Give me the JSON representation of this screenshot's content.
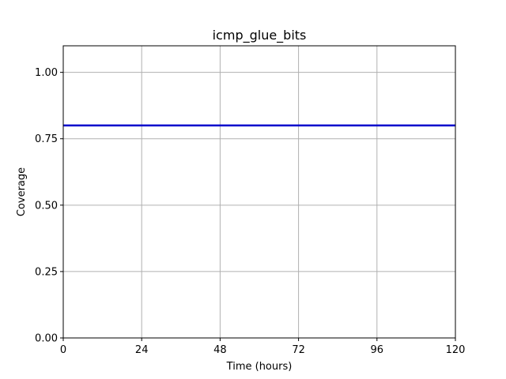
{
  "chart_data": {
    "type": "line",
    "title": "icmp_glue_bits",
    "xlabel": "Time (hours)",
    "ylabel": "Coverage",
    "xlim": [
      0,
      120
    ],
    "ylim": [
      0,
      1.1
    ],
    "xticks": [
      0,
      24,
      48,
      72,
      96,
      120
    ],
    "xtick_labels": [
      "0",
      "24",
      "48",
      "72",
      "96",
      "120"
    ],
    "yticks": [
      0,
      0.25,
      0.5,
      0.75,
      1.0
    ],
    "ytick_labels": [
      "0.00",
      "0.25",
      "0.50",
      "0.75",
      "1.00"
    ],
    "grid": true,
    "series": [
      {
        "color": "#0000cc",
        "x": [
          0,
          120
        ],
        "y": [
          0.8,
          0.8
        ]
      }
    ]
  }
}
